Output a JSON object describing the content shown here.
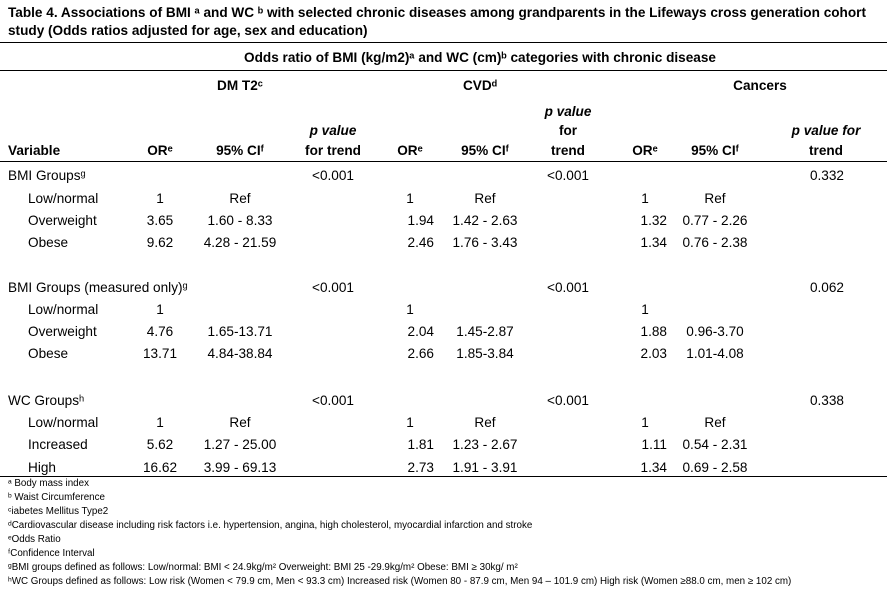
{
  "title": "Table 4. Associations of BMI ᵃ and WC ᵇ with selected chronic diseases among grandparents in the Lifeways cross generation cohort study  (Odds ratios adjusted for age, sex and education)",
  "super_header": "Odds ratio of BMI (kg/m2)ᵃ  and WC (cm)ᵇ categories with chronic disease",
  "groups": {
    "dm": "DM T2ᶜ",
    "cvd": "CVDᵈ",
    "cancers": "Cancers"
  },
  "columns": {
    "variable": "Variable",
    "or": "ORᵉ",
    "ci": "95% CIᶠ",
    "p_dm_1": "p value",
    "p_dm_2": "for trend",
    "p_cvd_1": "p value",
    "p_cvd_2": "for",
    "p_cvd_3": "trend",
    "p_can_1": "p value for",
    "p_can_2": "trend"
  },
  "sections": [
    {
      "label": "BMI Groupsᵍ",
      "p_dm": "<0.001",
      "p_cvd": "<0.001",
      "p_can": "0.332",
      "rows": [
        {
          "name": "Low/normal",
          "dm_or": "1",
          "dm_ci": "Ref",
          "cvd_or": "1",
          "cvd_ci": "Ref",
          "can_or": "1",
          "can_ci": "Ref"
        },
        {
          "name": "Overweight",
          "dm_or": "3.65",
          "dm_ci": "1.60 - 8.33",
          "cvd_or": "1.94",
          "cvd_ci": "1.42 - 2.63",
          "can_or": "1.32",
          "can_ci": "0.77 - 2.26"
        },
        {
          "name": "Obese",
          "dm_or": "9.62",
          "dm_ci": "4.28 - 21.59",
          "cvd_or": "2.46",
          "cvd_ci": "1.76 - 3.43",
          "can_or": "1.34",
          "can_ci": "0.76 - 2.38"
        }
      ]
    },
    {
      "label": "BMI Groups (measured only)ᵍ",
      "p_dm": "<0.001",
      "p_cvd": "<0.001",
      "p_can": "0.062",
      "rows": [
        {
          "name": "Low/normal",
          "dm_or": "1",
          "dm_ci": "",
          "cvd_or": "1",
          "cvd_ci": "",
          "can_or": "1",
          "can_ci": ""
        },
        {
          "name": "Overweight",
          "dm_or": "4.76",
          "dm_ci": "1.65-13.71",
          "cvd_or": "2.04",
          "cvd_ci": "1.45-2.87",
          "can_or": "1.88",
          "can_ci": "0.96-3.70"
        },
        {
          "name": "Obese",
          "dm_or": "13.71",
          "dm_ci": "4.84-38.84",
          "cvd_or": "2.66",
          "cvd_ci": "1.85-3.84",
          "can_or": "2.03",
          "can_ci": "1.01-4.08"
        }
      ]
    },
    {
      "label": "WC Groupsʰ",
      "p_dm": "<0.001",
      "p_cvd": "<0.001",
      "p_can": "0.338",
      "rows": [
        {
          "name": "Low/normal",
          "dm_or": "1",
          "dm_ci": "Ref",
          "cvd_or": "1",
          "cvd_ci": "Ref",
          "can_or": "1",
          "can_ci": "Ref"
        },
        {
          "name": "Increased",
          "dm_or": "5.62",
          "dm_ci": "1.27 - 25.00",
          "cvd_or": "1.81",
          "cvd_ci": "1.23 - 2.67",
          "can_or": "1.11",
          "can_ci": "0.54 - 2.31"
        },
        {
          "name": "High",
          "dm_or": "16.62",
          "dm_ci": "3.99 - 69.13",
          "cvd_or": "2.73",
          "cvd_ci": "1.91 - 3.91",
          "can_or": "1.34",
          "can_ci": "0.69 - 2.58"
        }
      ]
    }
  ],
  "footnotes": [
    "ᵃ Body mass index",
    "ᵇ Waist Circumference",
    "ᶜiabetes Mellitus Type2",
    "ᵈCardiovascular disease including risk factors i.e. hypertension, angina, high cholesterol, myocardial infarction and stroke",
    "ᵉOdds Ratio",
    "ᶠConfidence Interval",
    "ᵍBMI groups defined as follows: Low/normal: BMI < 24.9kg/m² Overweight: BMI 25 -29.9kg/m² Obese: BMI ≥ 30kg/ m²",
    "ʰWC Groups defined as follows: Low risk (Women < 79.9 cm, Men < 93.3 cm) Increased risk (Women 80 - 87.9 cm, Men 94 – 101.9 cm) High risk (Women ≥88.0 cm, men ≥ 102 cm)"
  ]
}
